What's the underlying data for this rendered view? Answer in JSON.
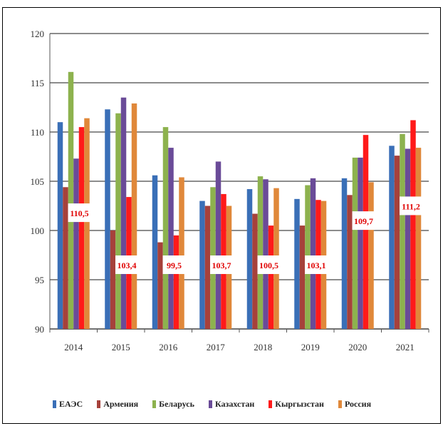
{
  "chart_data": {
    "type": "bar",
    "categories": [
      "2014",
      "2015",
      "2016",
      "2017",
      "2018",
      "2019",
      "2020",
      "2021"
    ],
    "series": [
      {
        "name": "ЕАЭС",
        "color": "#3a6fb7",
        "values": [
          111.0,
          112.3,
          105.6,
          103.0,
          104.2,
          103.2,
          105.3,
          108.6
        ]
      },
      {
        "name": "Армения",
        "color": "#a6413b",
        "values": [
          104.4,
          100.0,
          98.8,
          102.5,
          101.7,
          100.5,
          103.6,
          107.6
        ]
      },
      {
        "name": "Беларусь",
        "color": "#8db24e",
        "values": [
          116.1,
          111.9,
          110.5,
          104.4,
          105.5,
          104.6,
          107.4,
          109.8
        ]
      },
      {
        "name": "Казахстан",
        "color": "#6a4b98",
        "values": [
          107.3,
          113.5,
          108.4,
          107.0,
          105.2,
          105.3,
          107.4,
          108.3
        ]
      },
      {
        "name": "Кыргызстан",
        "color": "#ff1a1a",
        "values": [
          110.5,
          103.4,
          99.5,
          103.7,
          100.5,
          103.1,
          109.7,
          111.2
        ]
      },
      {
        "name": "Россия",
        "color": "#e0883a",
        "values": [
          111.4,
          112.9,
          105.4,
          102.5,
          104.3,
          103.0,
          104.9,
          108.4
        ]
      }
    ],
    "data_labels": [
      "110,5",
      "103,4",
      "99,5",
      "103,7",
      "100,5",
      "103,1",
      "109,7",
      "111,2"
    ],
    "y_ticks": [
      "90",
      "95",
      "100",
      "105",
      "110",
      "115",
      "120"
    ],
    "ylim": [
      90,
      120
    ],
    "grid": true,
    "legend_position": "bottom",
    "title": "",
    "xlabel": "",
    "ylabel": ""
  }
}
